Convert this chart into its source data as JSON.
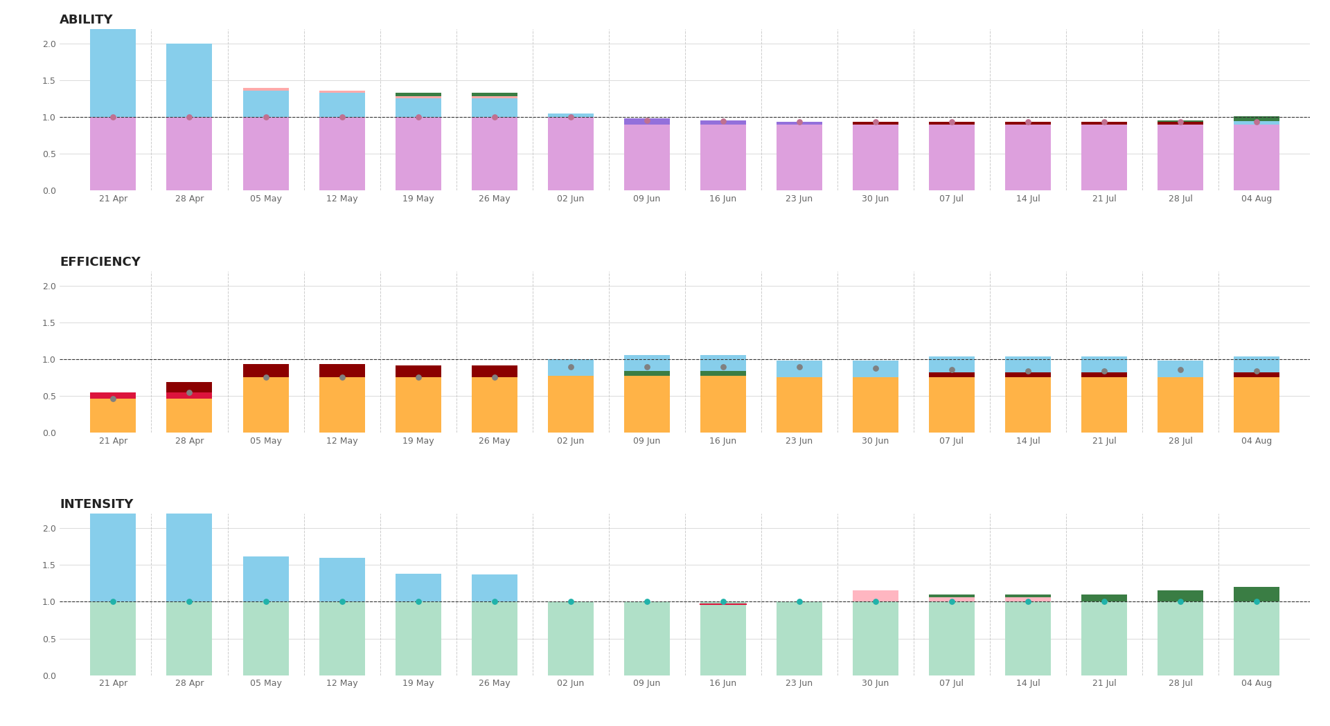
{
  "dates": [
    "21 Apr",
    "28 Apr",
    "05 May",
    "12 May",
    "19 May",
    "26 May",
    "02 Jun",
    "09 Jun",
    "16 Jun",
    "23 Jun",
    "30 Jun",
    "07 Jul",
    "14 Jul",
    "21 Jul",
    "28 Jul",
    "04 Aug"
  ],
  "ability": {
    "waste": [
      1.2,
      1.0,
      0.0,
      0.0,
      0.0,
      0.0,
      0.0,
      0.0,
      0.0,
      0.0,
      0.0,
      0.0,
      0.0,
      0.0,
      0.0,
      0.0
    ],
    "excess": [
      0.0,
      0.0,
      0.38,
      0.35,
      0.27,
      0.27,
      0.05,
      0.0,
      0.0,
      0.0,
      0.0,
      0.0,
      0.0,
      0.0,
      0.0,
      0.05
    ],
    "green_top": [
      0.0,
      0.0,
      0.0,
      0.0,
      0.06,
      0.06,
      0.0,
      0.0,
      0.0,
      0.0,
      0.0,
      0.0,
      0.0,
      0.0,
      0.06,
      0.06
    ],
    "shortfall": [
      0.0,
      0.0,
      0.0,
      0.0,
      0.0,
      0.0,
      0.0,
      0.08,
      0.06,
      0.04,
      0.0,
      0.04,
      0.04,
      0.04,
      0.0,
      0.0
    ],
    "dark_red": [
      0.0,
      0.0,
      0.0,
      0.0,
      0.0,
      0.0,
      0.0,
      0.0,
      0.0,
      0.0,
      0.04,
      0.04,
      0.04,
      0.04,
      0.04,
      0.0
    ],
    "base": [
      1.0,
      1.0,
      1.0,
      1.0,
      1.0,
      1.0,
      1.0,
      0.9,
      0.9,
      0.9,
      0.9,
      0.9,
      0.9,
      0.9,
      0.9,
      0.9
    ],
    "dot": [
      1.0,
      1.0,
      1.0,
      1.0,
      1.0,
      1.0,
      1.0,
      0.96,
      0.95,
      0.94,
      0.94,
      0.94,
      0.94,
      0.94,
      0.94,
      0.94
    ],
    "pink_line": [
      0.0,
      0.0,
      0.03,
      0.03,
      0.03,
      0.03,
      0.0,
      0.0,
      0.0,
      0.0,
      0.0,
      0.0,
      0.0,
      0.0,
      0.0,
      0.0
    ]
  },
  "efficiency": {
    "excess_blue": [
      0.0,
      0.0,
      0.0,
      0.0,
      0.0,
      0.0,
      0.22,
      0.22,
      0.22,
      0.22,
      0.22,
      0.22,
      0.22,
      0.22,
      0.22,
      0.22
    ],
    "dark_red": [
      0.0,
      0.22,
      0.18,
      0.18,
      0.16,
      0.16,
      0.0,
      0.0,
      0.0,
      0.0,
      0.0,
      0.06,
      0.06,
      0.06,
      0.0,
      0.06
    ],
    "red_mid": [
      0.08,
      0.08,
      0.0,
      0.0,
      0.0,
      0.0,
      0.0,
      0.0,
      0.0,
      0.0,
      0.0,
      0.0,
      0.0,
      0.0,
      0.0,
      0.0
    ],
    "green_bar": [
      0.0,
      0.0,
      0.0,
      0.0,
      0.0,
      0.0,
      0.0,
      0.06,
      0.06,
      0.0,
      0.0,
      0.0,
      0.0,
      0.0,
      0.0,
      0.0
    ],
    "base": [
      0.47,
      0.47,
      0.76,
      0.76,
      0.76,
      0.76,
      0.78,
      0.78,
      0.78,
      0.76,
      0.76,
      0.76,
      0.76,
      0.76,
      0.76,
      0.76
    ],
    "dot": [
      0.47,
      0.55,
      0.76,
      0.76,
      0.76,
      0.76,
      0.9,
      0.9,
      0.9,
      0.9,
      0.88,
      0.86,
      0.84,
      0.84,
      0.86,
      0.84
    ]
  },
  "intensity": {
    "waste": [
      1.2,
      1.2,
      0.62,
      0.6,
      0.38,
      0.37,
      0.0,
      0.0,
      0.0,
      0.0,
      0.0,
      0.0,
      0.0,
      0.0,
      0.0,
      0.0
    ],
    "pink_top": [
      0.0,
      0.0,
      0.0,
      0.0,
      0.0,
      0.0,
      0.0,
      0.0,
      0.0,
      0.0,
      0.16,
      0.06,
      0.06,
      0.0,
      0.0,
      0.0
    ],
    "green_top": [
      0.0,
      0.0,
      0.0,
      0.0,
      0.0,
      0.0,
      0.0,
      0.0,
      0.0,
      0.0,
      0.0,
      0.04,
      0.04,
      0.1,
      0.16,
      0.2
    ],
    "red_line": [
      0.0,
      0.0,
      0.0,
      0.0,
      0.0,
      0.0,
      0.0,
      0.0,
      1.0,
      0.0,
      0.0,
      0.0,
      0.0,
      0.0,
      0.0,
      0.0
    ],
    "base": [
      1.0,
      1.0,
      1.0,
      1.0,
      1.0,
      1.0,
      1.0,
      1.0,
      1.0,
      1.0,
      1.0,
      1.0,
      1.0,
      1.0,
      1.0,
      1.0
    ],
    "dot": [
      1.0,
      1.0,
      1.0,
      1.0,
      1.0,
      1.0,
      1.0,
      1.0,
      1.0,
      1.0,
      1.0,
      1.0,
      1.0,
      1.0,
      1.0,
      1.0
    ]
  },
  "colors": {
    "ability_base": "#dda0dd",
    "ability_waste": "#87ceeb",
    "ability_excess": "#87ceeb",
    "ability_green": "#3a7d44",
    "ability_shortfall": "#9370db",
    "ability_darkred": "#8b0000",
    "ability_dot": "#c07090",
    "ability_pink_line": "#ffaaaa",
    "efficiency_base": "#ffb347",
    "efficiency_blue": "#87ceeb",
    "efficiency_darkred": "#8b0000",
    "efficiency_red": "#dc143c",
    "efficiency_green": "#3a7d44",
    "efficiency_dot": "#808080",
    "intensity_base": "#b0e0c8",
    "intensity_waste": "#87ceeb",
    "intensity_pink": "#ffb6c1",
    "intensity_green": "#3a7d44",
    "intensity_red": "#dc143c",
    "intensity_dot": "#20b2aa",
    "grid": "#cccccc",
    "vgrid": "#cccccc"
  },
  "bar_width": 0.6,
  "ylim": [
    0.0,
    2.2
  ],
  "yticks": [
    0.0,
    0.5,
    1.0,
    1.5,
    2.0
  ],
  "titles": [
    "ABILITY",
    "EFFICIENCY",
    "INTENSITY"
  ],
  "background": "#ffffff"
}
